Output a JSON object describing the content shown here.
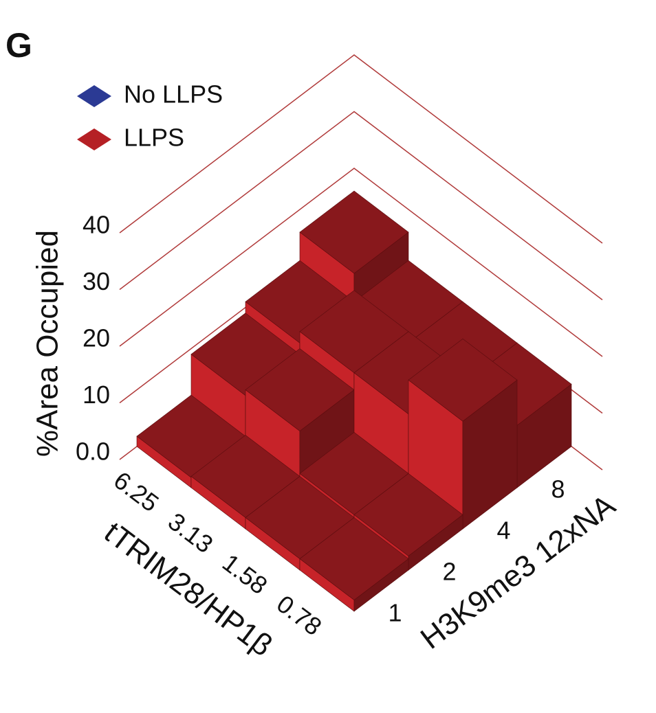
{
  "chart_data": {
    "type": "bar3d",
    "panel_label": "G",
    "ylabel": "%Area Occupied",
    "xlabel": "tTRIM28/HP1β",
    "zlabel": "H3K9me3 12xNA",
    "x_categories": [
      "6.25",
      "3.13",
      "1.58",
      "0.78"
    ],
    "z_categories": [
      "1",
      "2",
      "4",
      "8"
    ],
    "ylim": [
      0,
      40
    ],
    "yticks": [
      {
        "value": 0,
        "label": "0.0"
      },
      10,
      20,
      30,
      40
    ],
    "grid": true,
    "legend": "upper left",
    "series": [
      {
        "name": "No LLPS",
        "color": "#2b3a94",
        "values": [
          [
            null,
            null,
            null,
            null
          ],
          [
            null,
            null,
            null,
            null
          ],
          [
            null,
            null,
            null,
            null
          ],
          [
            null,
            null,
            null,
            null
          ]
        ]
      },
      {
        "name": "LLPS",
        "color": "#b52025",
        "values": [
          [
            1.8,
            9,
            11,
            16
          ],
          [
            2,
            10,
            13,
            11
          ],
          [
            2,
            2.5,
            13,
            11
          ],
          [
            2,
            2.5,
            19,
            11
          ]
        ]
      }
    ]
  }
}
